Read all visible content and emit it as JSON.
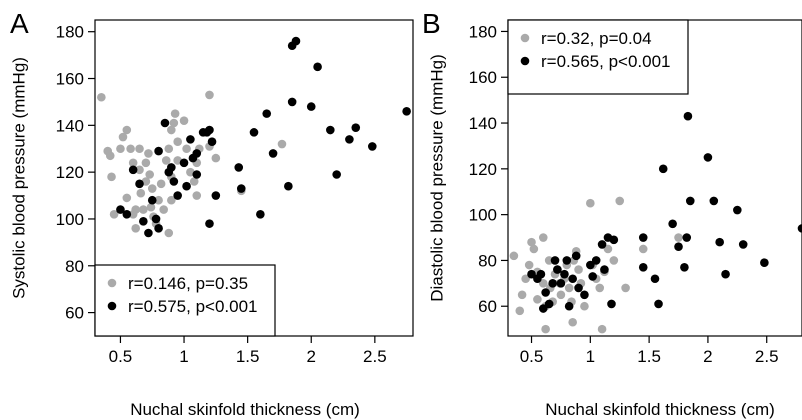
{
  "chart_data": [
    {
      "type": "scatter",
      "panel_label": "A",
      "xlabel": "Nuchal skinfold thickness (cm)",
      "ylabel": "Systolic blood pressure (mmHg)",
      "xlim": [
        0.3,
        2.8
      ],
      "ylim": [
        50,
        185
      ],
      "x_ticks": [
        0.5,
        1,
        1.5,
        2,
        2.5
      ],
      "x_tick_labels": [
        "0.5",
        "1",
        "1.5",
        "2",
        "2.5"
      ],
      "y_ticks": [
        60,
        80,
        100,
        120,
        140,
        160,
        180
      ],
      "y_tick_labels": [
        "60",
        "80",
        "100",
        "120",
        "140",
        "160",
        "180"
      ],
      "grid": false,
      "legend_position": "bottom-left",
      "series": [
        {
          "name": "r=0.146, p=0.35",
          "color": "#aaaaaa",
          "points": [
            [
              0.35,
              152
            ],
            [
              0.4,
              129
            ],
            [
              0.42,
              127
            ],
            [
              0.45,
              102
            ],
            [
              0.43,
              118
            ],
            [
              0.5,
              130
            ],
            [
              0.52,
              135
            ],
            [
              0.55,
              138
            ],
            [
              0.58,
              130
            ],
            [
              0.6,
              124
            ],
            [
              0.55,
              109
            ],
            [
              0.62,
              104
            ],
            [
              0.6,
              102
            ],
            [
              0.62,
              96
            ],
            [
              0.65,
              121
            ],
            [
              0.66,
              111
            ],
            [
              0.68,
              104
            ],
            [
              0.65,
              130
            ],
            [
              0.7,
              124
            ],
            [
              0.72,
              128
            ],
            [
              0.73,
              119
            ],
            [
              0.7,
              116
            ],
            [
              0.75,
              113
            ],
            [
              0.74,
              105
            ],
            [
              0.76,
              101
            ],
            [
              0.78,
              98
            ],
            [
              0.8,
              108
            ],
            [
              0.82,
              115
            ],
            [
              0.84,
              104
            ],
            [
              0.86,
              125
            ],
            [
              0.88,
              130
            ],
            [
              0.9,
              138
            ],
            [
              0.92,
              141
            ],
            [
              0.93,
              145
            ],
            [
              0.95,
              133
            ],
            [
              0.9,
              118
            ],
            [
              0.95,
              125
            ],
            [
              0.88,
              94
            ],
            [
              0.9,
              108
            ],
            [
              1.0,
              142
            ],
            [
              1.02,
              130
            ],
            [
              1.05,
              120
            ],
            [
              1.08,
              116
            ],
            [
              1.1,
              124
            ],
            [
              1.12,
              130
            ],
            [
              1.1,
              110
            ],
            [
              1.2,
              153
            ],
            [
              1.25,
              126
            ],
            [
              1.45,
              112
            ],
            [
              1.77,
              132
            ],
            [
              1.2,
              131
            ]
          ]
        },
        {
          "name": "r=0.575, p<0.001",
          "color": "#000000",
          "points": [
            [
              0.5,
              104
            ],
            [
              0.55,
              102
            ],
            [
              0.6,
              121
            ],
            [
              0.65,
              115
            ],
            [
              0.68,
              99
            ],
            [
              0.72,
              94
            ],
            [
              0.75,
              108
            ],
            [
              0.78,
              100
            ],
            [
              0.8,
              96
            ],
            [
              0.8,
              129
            ],
            [
              0.85,
              141
            ],
            [
              0.88,
              120
            ],
            [
              0.9,
              122
            ],
            [
              0.92,
              116
            ],
            [
              0.95,
              110
            ],
            [
              1.0,
              124
            ],
            [
              1.02,
              114
            ],
            [
              1.05,
              134
            ],
            [
              1.07,
              126
            ],
            [
              1.1,
              128
            ],
            [
              1.1,
              119
            ],
            [
              1.15,
              137
            ],
            [
              1.18,
              137
            ],
            [
              1.2,
              138
            ],
            [
              1.2,
              98
            ],
            [
              1.22,
              133
            ],
            [
              1.25,
              110
            ],
            [
              1.43,
              122
            ],
            [
              1.45,
              113
            ],
            [
              1.55,
              137
            ],
            [
              1.6,
              102
            ],
            [
              1.65,
              145
            ],
            [
              1.7,
              128
            ],
            [
              1.82,
              114
            ],
            [
              1.85,
              150
            ],
            [
              1.85,
              174
            ],
            [
              1.88,
              176
            ],
            [
              2.0,
              148
            ],
            [
              2.05,
              165
            ],
            [
              2.15,
              138
            ],
            [
              2.2,
              119
            ],
            [
              2.3,
              134
            ],
            [
              2.35,
              139
            ],
            [
              2.48,
              131
            ],
            [
              2.75,
              146
            ]
          ]
        }
      ]
    },
    {
      "type": "scatter",
      "panel_label": "B",
      "xlabel": "Nuchal skinfold thickness (cm)",
      "ylabel": "Diastolic blood pressure (mmHg)",
      "xlim": [
        0.3,
        2.8
      ],
      "ylim": [
        47,
        185
      ],
      "x_ticks": [
        0.5,
        1,
        1.5,
        2,
        2.5
      ],
      "x_tick_labels": [
        "0.5",
        "1",
        "1.5",
        "2",
        "2.5"
      ],
      "y_ticks": [
        60,
        80,
        100,
        120,
        140,
        160,
        180
      ],
      "y_tick_labels": [
        "60",
        "80",
        "100",
        "120",
        "140",
        "160",
        "180"
      ],
      "grid": false,
      "legend_position": "top-left",
      "series": [
        {
          "name": "r=0.32, p=0.04",
          "color": "#aaaaaa",
          "points": [
            [
              0.35,
              82
            ],
            [
              0.4,
              58
            ],
            [
              0.42,
              65
            ],
            [
              0.45,
              72
            ],
            [
              0.48,
              78
            ],
            [
              0.5,
              88
            ],
            [
              0.52,
              85
            ],
            [
              0.55,
              75
            ],
            [
              0.55,
              63
            ],
            [
              0.6,
              90
            ],
            [
              0.6,
              70
            ],
            [
              0.62,
              60
            ],
            [
              0.62,
              50
            ],
            [
              0.65,
              80
            ],
            [
              0.66,
              68
            ],
            [
              0.68,
              62
            ],
            [
              0.7,
              74
            ],
            [
              0.72,
              76
            ],
            [
              0.74,
              70
            ],
            [
              0.75,
              65
            ],
            [
              0.78,
              72
            ],
            [
              0.8,
              78
            ],
            [
              0.82,
              68
            ],
            [
              0.84,
              62
            ],
            [
              0.86,
              80
            ],
            [
              0.88,
              84
            ],
            [
              0.9,
              76
            ],
            [
              0.92,
              70
            ],
            [
              0.95,
              60
            ],
            [
              0.85,
              53
            ],
            [
              1.0,
              105
            ],
            [
              1.02,
              78
            ],
            [
              1.05,
              72
            ],
            [
              1.08,
              68
            ],
            [
              1.1,
              50
            ],
            [
              1.12,
              75
            ],
            [
              1.15,
              85
            ],
            [
              1.2,
              80
            ],
            [
              1.25,
              106
            ],
            [
              1.45,
              85
            ],
            [
              1.3,
              68
            ],
            [
              1.75,
              90
            ]
          ]
        },
        {
          "name": "r=0.565, p<0.001",
          "color": "#000000",
          "points": [
            [
              0.5,
              74
            ],
            [
              0.55,
              72
            ],
            [
              0.58,
              74
            ],
            [
              0.6,
              59
            ],
            [
              0.62,
              66
            ],
            [
              0.65,
              61
            ],
            [
              0.68,
              70
            ],
            [
              0.7,
              80
            ],
            [
              0.72,
              76
            ],
            [
              0.75,
              70
            ],
            [
              0.78,
              74
            ],
            [
              0.8,
              80
            ],
            [
              0.82,
              60
            ],
            [
              0.85,
              72
            ],
            [
              0.88,
              82
            ],
            [
              0.9,
              68
            ],
            [
              0.95,
              65
            ],
            [
              1.0,
              78
            ],
            [
              1.02,
              73
            ],
            [
              1.05,
              80
            ],
            [
              1.1,
              87
            ],
            [
              1.12,
              76
            ],
            [
              1.15,
              90
            ],
            [
              1.18,
              61
            ],
            [
              1.2,
              89
            ],
            [
              1.45,
              90
            ],
            [
              1.45,
              77
            ],
            [
              1.55,
              72
            ],
            [
              1.58,
              61
            ],
            [
              1.62,
              120
            ],
            [
              1.7,
              96
            ],
            [
              1.75,
              86
            ],
            [
              1.8,
              77
            ],
            [
              1.82,
              90
            ],
            [
              1.83,
              143
            ],
            [
              1.85,
              106
            ],
            [
              2.0,
              125
            ],
            [
              2.05,
              106
            ],
            [
              2.1,
              88
            ],
            [
              2.15,
              74
            ],
            [
              2.25,
              102
            ],
            [
              2.3,
              87
            ],
            [
              2.48,
              79
            ],
            [
              2.8,
              94
            ]
          ]
        }
      ]
    }
  ]
}
